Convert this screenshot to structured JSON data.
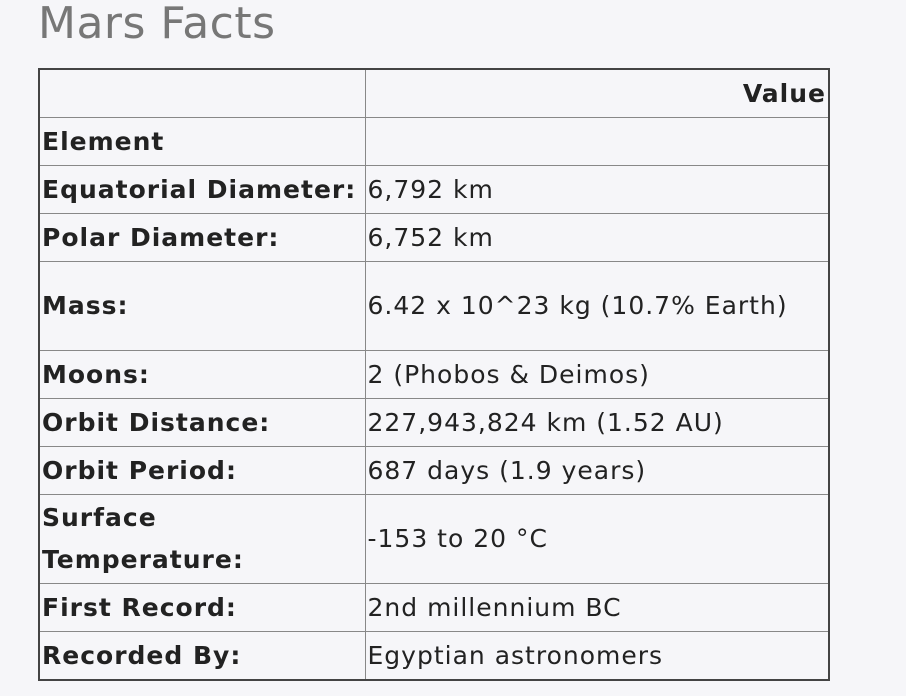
{
  "page": {
    "title": "Mars Facts"
  },
  "table": {
    "header": {
      "col1": "",
      "col2": "Value"
    },
    "index_label": "Element",
    "rows": [
      {
        "label": "Equatorial Diameter:",
        "value": "6,792 km"
      },
      {
        "label": "Polar Diameter:",
        "value": "6,752 km"
      },
      {
        "label": "Mass:",
        "value": "6.42 x 10^23 kg (10.7% Earth)"
      },
      {
        "label": "Moons:",
        "value": "2 (Phobos & Deimos)"
      },
      {
        "label": "Orbit Distance:",
        "value": "227,943,824 km (1.52 AU)"
      },
      {
        "label": "Orbit Period:",
        "value": "687 days (1.9 years)"
      },
      {
        "label": "Surface Temperature:",
        "value": "-153 to 20 °C"
      },
      {
        "label": "First Record:",
        "value": "2nd millennium BC"
      },
      {
        "label": "Recorded By:",
        "value": "Egyptian astronomers"
      }
    ]
  }
}
